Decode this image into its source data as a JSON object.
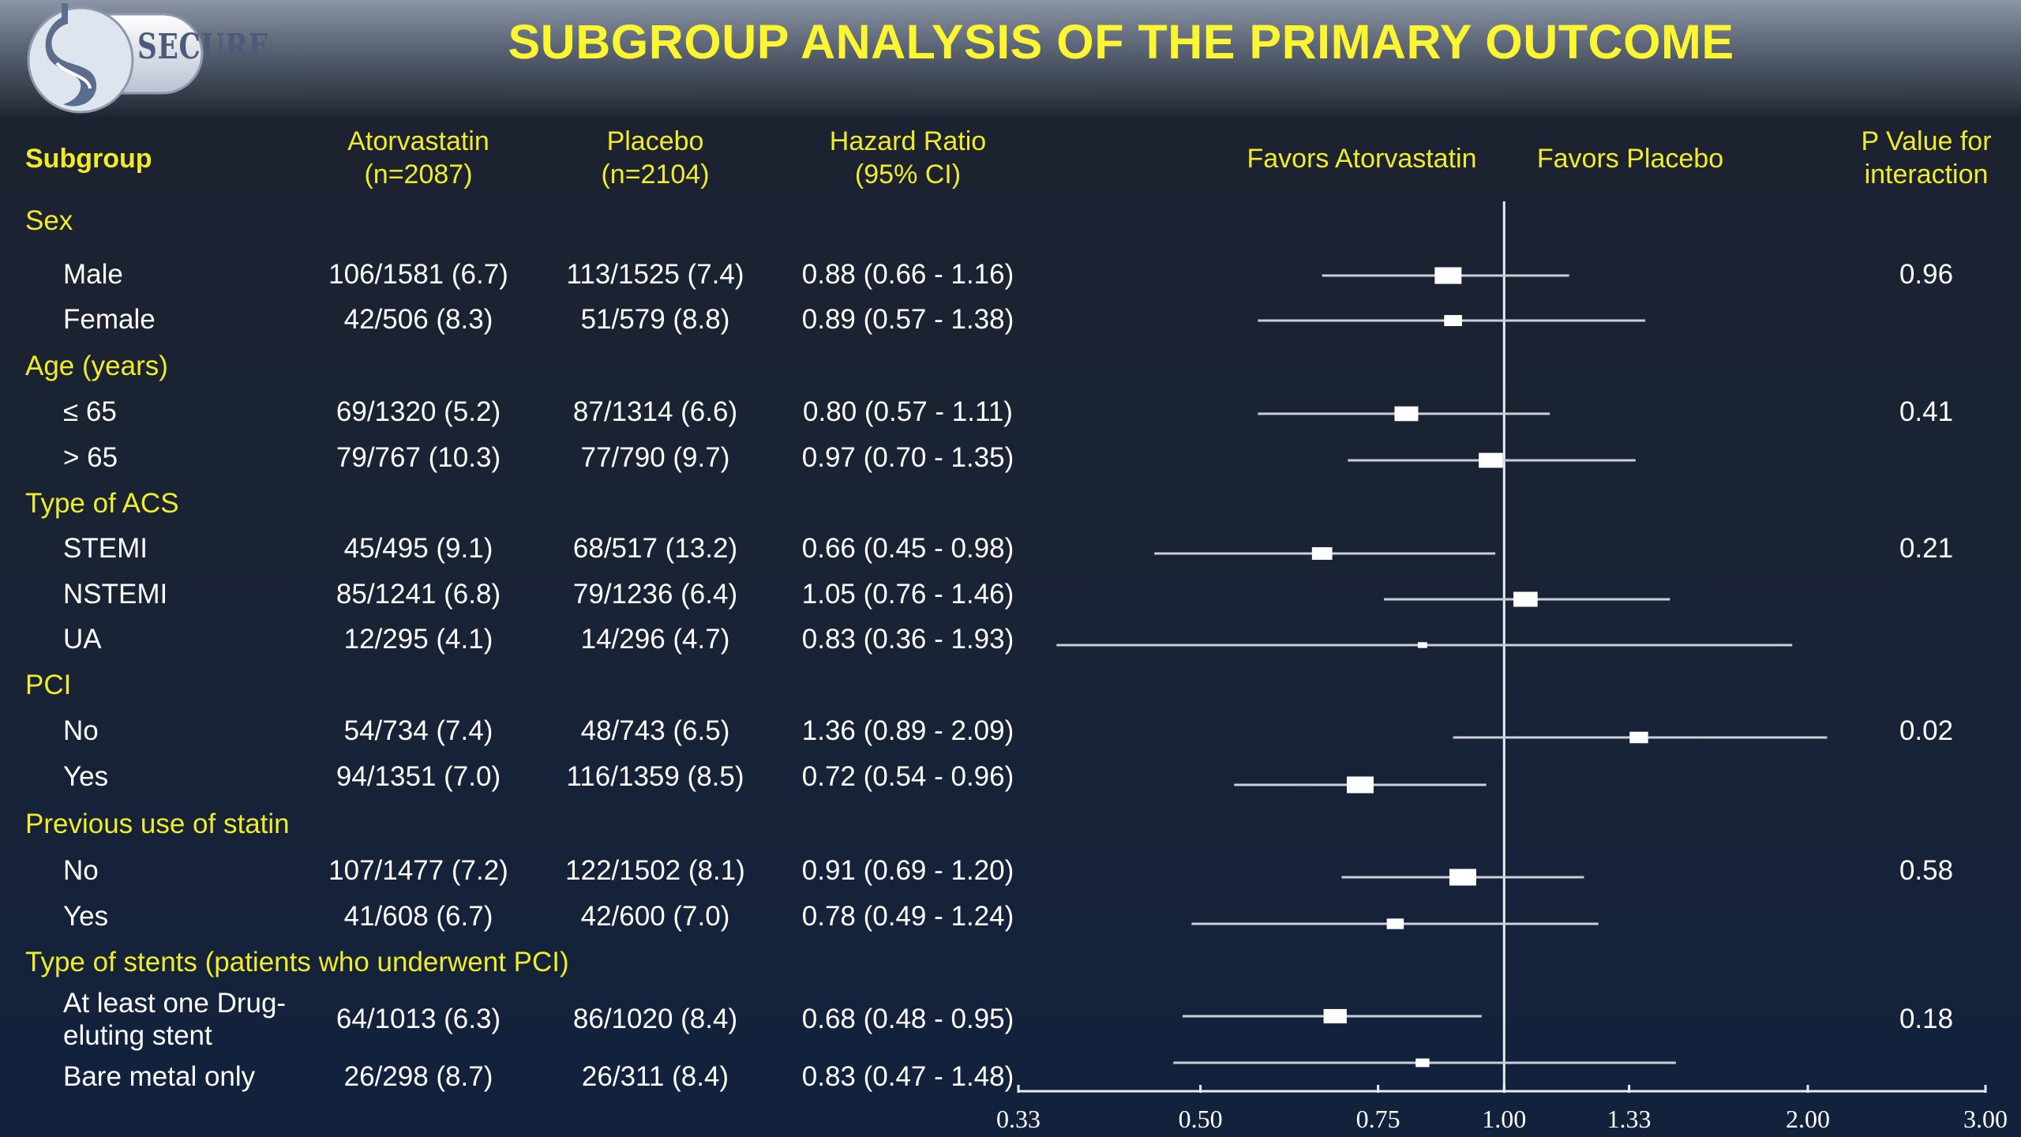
{
  "header": {
    "logo_text": "SECURE",
    "title": "SUBGROUP ANALYSIS OF THE PRIMARY OUTCOME"
  },
  "columns": {
    "subgroup": "Subgroup",
    "atorvastatin_line1": "Atorvastatin",
    "atorvastatin_line2": "(n=2087)",
    "placebo_line1": "Placebo",
    "placebo_line2": "(n=2104)",
    "hr_line1": "Hazard Ratio",
    "hr_line2": "(95% CI)",
    "favors_atorvastatin": "Favors Atorvastatin",
    "favors_placebo": "Favors Placebo",
    "pvalue_line1": "P Value for",
    "pvalue_line2": "interaction"
  },
  "groups": [
    {
      "name": "Sex"
    },
    {
      "name": "Age (years)"
    },
    {
      "name": "Type of ACS"
    },
    {
      "name": "PCI"
    },
    {
      "name": "Previous use of statin"
    },
    {
      "name": "Type of stents (patients who underwent PCI)"
    }
  ],
  "rows": [
    {
      "label": "Male",
      "atorvastatin": "106/1581 (6.7)",
      "placebo": "113/1525 (7.4)",
      "hr_text": "0.88 (0.66 - 1.16)",
      "p": "0.96"
    },
    {
      "label": "Female",
      "atorvastatin": "42/506 (8.3)",
      "placebo": "51/579 (8.8)",
      "hr_text": "0.89 (0.57 - 1.38)",
      "p": ""
    },
    {
      "label": "≤ 65",
      "atorvastatin": "69/1320 (5.2)",
      "placebo": "87/1314 (6.6)",
      "hr_text": "0.80 (0.57 - 1.11)",
      "p": "0.41"
    },
    {
      "label": "> 65",
      "atorvastatin": "79/767 (10.3)",
      "placebo": "77/790 (9.7)",
      "hr_text": "0.97 (0.70 - 1.35)",
      "p": ""
    },
    {
      "label": "STEMI",
      "atorvastatin": "45/495 (9.1)",
      "placebo": "68/517 (13.2)",
      "hr_text": "0.66 (0.45 - 0.98)",
      "p": "0.21"
    },
    {
      "label": "NSTEMI",
      "atorvastatin": "85/1241 (6.8)",
      "placebo": "79/1236 (6.4)",
      "hr_text": "1.05 (0.76 - 1.46)",
      "p": ""
    },
    {
      "label": "UA",
      "atorvastatin": "12/295 (4.1)",
      "placebo": "14/296 (4.7)",
      "hr_text": "0.83 (0.36 - 1.93)",
      "p": ""
    },
    {
      "label": "No",
      "atorvastatin": "54/734 (7.4)",
      "placebo": "48/743 (6.5)",
      "hr_text": "1.36 (0.89 - 2.09)",
      "p": "0.02"
    },
    {
      "label": "Yes",
      "atorvastatin": "94/1351 (7.0)",
      "placebo": "116/1359 (8.5)",
      "hr_text": "0.72 (0.54 - 0.96)",
      "p": ""
    },
    {
      "label": "No",
      "atorvastatin": "107/1477 (7.2)",
      "placebo": "122/1502 (8.1)",
      "hr_text": "0.91 (0.69 - 1.20)",
      "p": "0.58"
    },
    {
      "label": "Yes",
      "atorvastatin": "41/608 (6.7)",
      "placebo": "42/600 (7.0)",
      "hr_text": "0.78 (0.49 - 1.24)",
      "p": ""
    },
    {
      "label": "At least one Drug-",
      "label2": "eluting stent",
      "atorvastatin": "64/1013 (6.3)",
      "placebo": "86/1020 (8.4)",
      "hr_text": "0.68 (0.48 - 0.95)",
      "p": "0.18"
    },
    {
      "label": "Bare metal only",
      "atorvastatin": "26/298 (8.7)",
      "placebo": "26/311 (8.4)",
      "hr_text": "0.83 (0.47 - 1.48)",
      "p": ""
    }
  ],
  "chart_data": {
    "type": "forest",
    "x_scale": "log",
    "xlim": [
      0.33,
      3.0
    ],
    "xticks": [
      "0.33",
      "0.50",
      "0.75",
      "1.00",
      "1.33",
      "2.00",
      "3.00"
    ],
    "reference_line": 1.0,
    "points": [
      {
        "label": "Male",
        "hr": 0.88,
        "lo": 0.66,
        "hi": 1.16
      },
      {
        "label": "Female",
        "hr": 0.89,
        "lo": 0.57,
        "hi": 1.38
      },
      {
        "label": "≤ 65",
        "hr": 0.8,
        "lo": 0.57,
        "hi": 1.11
      },
      {
        "label": "> 65",
        "hr": 0.97,
        "lo": 0.7,
        "hi": 1.35
      },
      {
        "label": "STEMI",
        "hr": 0.66,
        "lo": 0.45,
        "hi": 0.98
      },
      {
        "label": "NSTEMI",
        "hr": 1.05,
        "lo": 0.76,
        "hi": 1.46
      },
      {
        "label": "UA",
        "hr": 0.83,
        "lo": 0.36,
        "hi": 1.93
      },
      {
        "label": "No",
        "hr": 1.36,
        "lo": 0.89,
        "hi": 2.09
      },
      {
        "label": "Yes",
        "hr": 0.72,
        "lo": 0.54,
        "hi": 0.96
      },
      {
        "label": "No",
        "hr": 0.91,
        "lo": 0.69,
        "hi": 1.2
      },
      {
        "label": "Yes",
        "hr": 0.78,
        "lo": 0.49,
        "hi": 1.24
      },
      {
        "label": "At least one Drug-eluting stent",
        "hr": 0.68,
        "lo": 0.48,
        "hi": 0.95
      },
      {
        "label": "Bare metal only",
        "hr": 0.83,
        "lo": 0.47,
        "hi": 1.48
      }
    ]
  }
}
